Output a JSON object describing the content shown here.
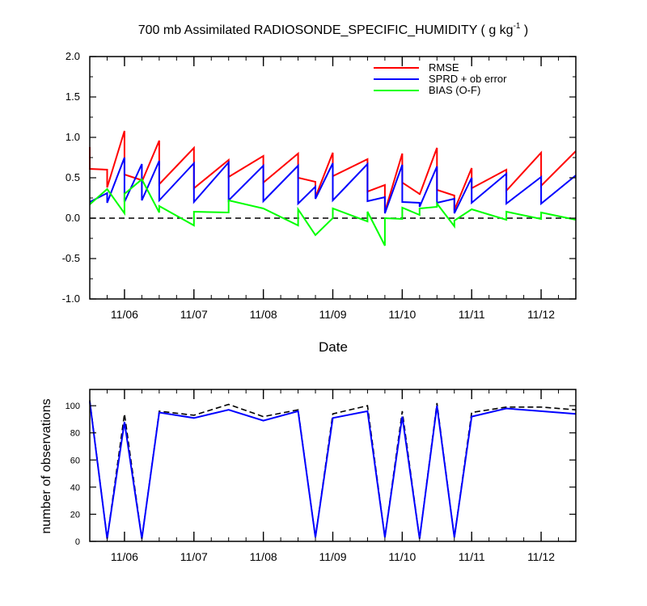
{
  "title": {
    "main": "700 mb Assimilated RADIOSONDE_SPECIFIC_HUMIDITY ( g kg",
    "sup": "-1",
    "close": " )"
  },
  "chart_data": [
    {
      "type": "line",
      "xlabel": "Date",
      "ylabel": "",
      "xlim": [
        0.5,
        7.5
      ],
      "ylim": [
        -1.0,
        2.0
      ],
      "y_ticks": [
        "2.0",
        "1.5",
        "1.0",
        "0.5",
        "0.0",
        "-0.5",
        "-1.0"
      ],
      "y_tick_values": [
        2.0,
        1.5,
        1.0,
        0.5,
        0.0,
        -0.5,
        -1.0
      ],
      "x_ticks": [
        "11/06",
        "11/07",
        "11/08",
        "11/09",
        "11/10",
        "11/11",
        "11/12"
      ],
      "x_tick_values": [
        1,
        2,
        3,
        4,
        5,
        6,
        7
      ],
      "zero_line": "dashed",
      "legend": {
        "position": "top-right",
        "entries": [
          {
            "label": "RMSE",
            "color": "#ff0000"
          },
          {
            "label": "SPRD + ob error",
            "color": "#0000ff"
          },
          {
            "label": "BIAS (O-F)",
            "color": "#00ff00"
          }
        ]
      },
      "series": [
        {
          "name": "RMSE",
          "color": "#ff0000",
          "points": [
            [
              0.5,
              0.88
            ],
            [
              0.5,
              0.61
            ],
            [
              0.75,
              0.6
            ],
            [
              0.75,
              0.38
            ],
            [
              1.0,
              1.08
            ],
            [
              1.0,
              0.54
            ],
            [
              1.25,
              0.47
            ],
            [
              1.25,
              0.45
            ],
            [
              1.5,
              0.96
            ],
            [
              1.5,
              0.42
            ],
            [
              2.0,
              0.87
            ],
            [
              2.0,
              0.37
            ],
            [
              2.5,
              0.72
            ],
            [
              2.5,
              0.51
            ],
            [
              3.0,
              0.77
            ],
            [
              3.0,
              0.44
            ],
            [
              3.5,
              0.8
            ],
            [
              3.5,
              0.5
            ],
            [
              3.75,
              0.45
            ],
            [
              3.75,
              0.26
            ],
            [
              4.0,
              0.81
            ],
            [
              4.0,
              0.52
            ],
            [
              4.5,
              0.73
            ],
            [
              4.5,
              0.33
            ],
            [
              4.75,
              0.41
            ],
            [
              4.75,
              0.08
            ],
            [
              5.0,
              0.8
            ],
            [
              5.0,
              0.44
            ],
            [
              5.25,
              0.3
            ],
            [
              5.25,
              0.29
            ],
            [
              5.5,
              0.87
            ],
            [
              5.5,
              0.35
            ],
            [
              5.75,
              0.28
            ],
            [
              5.75,
              0.1
            ],
            [
              6.0,
              0.62
            ],
            [
              6.0,
              0.37
            ],
            [
              6.5,
              0.6
            ],
            [
              6.5,
              0.34
            ],
            [
              7.0,
              0.81
            ],
            [
              7.0,
              0.4
            ],
            [
              7.5,
              0.83
            ]
          ]
        },
        {
          "name": "SPRD + ob error",
          "color": "#0000ff",
          "points": [
            [
              0.5,
              0.2
            ],
            [
              0.75,
              0.31
            ],
            [
              0.75,
              0.19
            ],
            [
              1.0,
              0.75
            ],
            [
              1.0,
              0.2
            ],
            [
              1.25,
              0.67
            ],
            [
              1.25,
              0.22
            ],
            [
              1.5,
              0.71
            ],
            [
              1.5,
              0.22
            ],
            [
              2.0,
              0.68
            ],
            [
              2.0,
              0.2
            ],
            [
              2.5,
              0.69
            ],
            [
              2.5,
              0.22
            ],
            [
              3.0,
              0.65
            ],
            [
              3.0,
              0.21
            ],
            [
              3.5,
              0.65
            ],
            [
              3.5,
              0.18
            ],
            [
              3.75,
              0.39
            ],
            [
              3.75,
              0.24
            ],
            [
              4.0,
              0.68
            ],
            [
              4.0,
              0.22
            ],
            [
              4.5,
              0.67
            ],
            [
              4.5,
              0.21
            ],
            [
              4.75,
              0.26
            ],
            [
              4.75,
              0.06
            ],
            [
              5.0,
              0.66
            ],
            [
              5.0,
              0.2
            ],
            [
              5.25,
              0.19
            ],
            [
              5.25,
              0.14
            ],
            [
              5.5,
              0.64
            ],
            [
              5.5,
              0.19
            ],
            [
              5.75,
              0.24
            ],
            [
              5.75,
              0.06
            ],
            [
              6.0,
              0.5
            ],
            [
              6.0,
              0.19
            ],
            [
              6.5,
              0.55
            ],
            [
              6.5,
              0.18
            ],
            [
              7.0,
              0.51
            ],
            [
              7.0,
              0.18
            ],
            [
              7.5,
              0.53
            ]
          ]
        },
        {
          "name": "BIAS (O-F)",
          "color": "#00ff00",
          "points": [
            [
              0.5,
              0.17
            ],
            [
              0.75,
              0.36
            ],
            [
              1.0,
              0.06
            ],
            [
              1.0,
              0.3
            ],
            [
              1.25,
              0.48
            ],
            [
              1.5,
              0.07
            ],
            [
              1.5,
              0.15
            ],
            [
              2.0,
              -0.09
            ],
            [
              2.0,
              0.08
            ],
            [
              2.5,
              0.07
            ],
            [
              2.5,
              0.22
            ],
            [
              3.0,
              0.12
            ],
            [
              3.5,
              -0.09
            ],
            [
              3.5,
              0.11
            ],
            [
              3.75,
              -0.21
            ],
            [
              4.0,
              0.0
            ],
            [
              4.0,
              0.12
            ],
            [
              4.5,
              -0.04
            ],
            [
              4.5,
              0.08
            ],
            [
              4.75,
              -0.34
            ],
            [
              4.75,
              0.0
            ],
            [
              5.0,
              -0.01
            ],
            [
              5.0,
              0.13
            ],
            [
              5.25,
              0.04
            ],
            [
              5.25,
              0.12
            ],
            [
              5.5,
              0.14
            ],
            [
              5.5,
              0.18
            ],
            [
              5.75,
              -0.1
            ],
            [
              5.75,
              -0.03
            ],
            [
              6.0,
              0.11
            ],
            [
              6.5,
              -0.02
            ],
            [
              6.5,
              0.08
            ],
            [
              7.0,
              -0.01
            ],
            [
              7.0,
              0.07
            ],
            [
              7.5,
              -0.02
            ]
          ]
        }
      ]
    },
    {
      "type": "line",
      "xlabel": "",
      "ylabel": "number of observations",
      "xlim": [
        0.5,
        7.5
      ],
      "ylim": [
        0,
        112
      ],
      "y_ticks": [
        "100",
        "80",
        "60",
        "40",
        "20",
        "0"
      ],
      "y_tick_values": [
        100,
        80,
        60,
        40,
        20,
        0
      ],
      "x_ticks": [
        "11/06",
        "11/07",
        "11/08",
        "11/09",
        "11/10",
        "11/11",
        "11/12"
      ],
      "x_tick_values": [
        1,
        2,
        3,
        4,
        5,
        6,
        7
      ],
      "series": [
        {
          "style": "dashed",
          "color": "#000000",
          "points": [
            [
              0.5,
              104
            ],
            [
              0.75,
              2
            ],
            [
              1.0,
              94
            ],
            [
              1.25,
              2
            ],
            [
              1.5,
              96
            ],
            [
              2.0,
              93
            ],
            [
              2.5,
              101
            ],
            [
              3.0,
              92
            ],
            [
              3.5,
              97
            ],
            [
              3.75,
              3
            ],
            [
              4.0,
              94
            ],
            [
              4.5,
              100
            ],
            [
              4.75,
              3
            ],
            [
              5.0,
              96
            ],
            [
              5.25,
              2
            ],
            [
              5.5,
              102
            ],
            [
              5.75,
              3
            ],
            [
              6.0,
              95
            ],
            [
              6.5,
              99
            ],
            [
              7.0,
              99
            ],
            [
              7.5,
              97
            ]
          ]
        },
        {
          "style": "solid",
          "color": "#0000ff",
          "points": [
            [
              0.5,
              103
            ],
            [
              0.75,
              2
            ],
            [
              1.0,
              88
            ],
            [
              1.25,
              2
            ],
            [
              1.5,
              95
            ],
            [
              2.0,
              91
            ],
            [
              2.5,
              97
            ],
            [
              3.0,
              89
            ],
            [
              3.5,
              96
            ],
            [
              3.75,
              3
            ],
            [
              4.0,
              91
            ],
            [
              4.5,
              96
            ],
            [
              4.75,
              3
            ],
            [
              5.0,
              92
            ],
            [
              5.25,
              2
            ],
            [
              5.5,
              100
            ],
            [
              5.75,
              3
            ],
            [
              6.0,
              92
            ],
            [
              6.5,
              98
            ],
            [
              7.0,
              96
            ],
            [
              7.5,
              94
            ]
          ]
        }
      ]
    }
  ]
}
